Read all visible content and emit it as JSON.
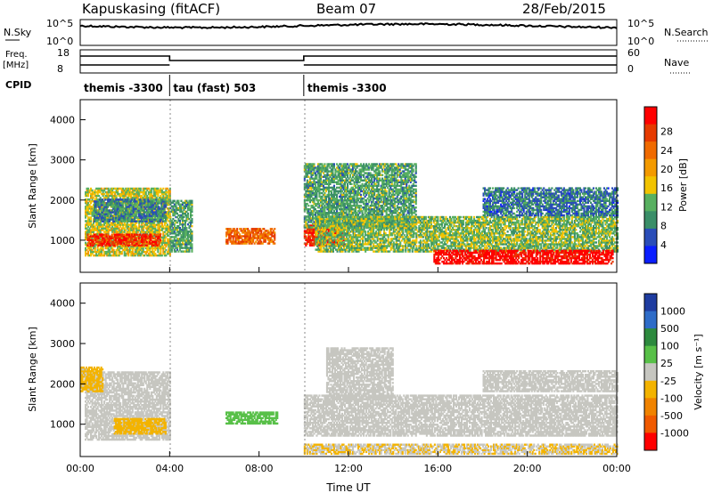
{
  "header": {
    "station": "Kapuskasing (fitACF)",
    "beam": "Beam 07",
    "date": "28/Feb/2015"
  },
  "aux_panels": {
    "nsky_label": "N.Sky",
    "nsky_ticks": [
      "10^5",
      "10^0"
    ],
    "nsearch_label": "N.Search",
    "nsearch_ticks": [
      "10^5",
      "10^0"
    ],
    "freq_label_1": "Freq.",
    "freq_label_2": "[MHz]",
    "freq_ticks": [
      "18",
      "8"
    ],
    "nave_label": "Nave",
    "nave_ticks": [
      "60",
      "0"
    ],
    "cpid_label": "CPID",
    "cpid_segments": [
      {
        "name": "themis -3300",
        "start_hr": 0,
        "end_hr": 4
      },
      {
        "name": "tau (fast) 503",
        "start_hr": 4,
        "end_hr": 10
      },
      {
        "name": "themis -3300",
        "start_hr": 10,
        "end_hr": 24
      }
    ]
  },
  "colors": {
    "power_scale": [
      "#0a1eff",
      "#2a4db8",
      "#3a8e68",
      "#58b060",
      "#f2c300",
      "#f39a00",
      "#f06a00",
      "#e63a00",
      "#ff0000"
    ],
    "velocity_scale": [
      "#1e3ca0",
      "#2e6cc8",
      "#2d8a3e",
      "#58c048",
      "#c6c6c0",
      "#f3b300",
      "#f08300",
      "#f05a00",
      "#ff0000"
    ],
    "ground_scatter": "#c6c6c0"
  },
  "chart_data": [
    {
      "type": "heatmap",
      "title": "",
      "xlabel": "Time UT",
      "ylabel": "Slant Range [km]",
      "xlim": [
        0,
        24
      ],
      "ylim": [
        200,
        4500
      ],
      "x_ticks": [
        "00:00",
        "04:00",
        "08:00",
        "12:00",
        "16:00",
        "20:00",
        "00:00"
      ],
      "y_ticks": [
        "1000",
        "2000",
        "3000",
        "4000"
      ],
      "colorbar": {
        "label": "Power [dB]",
        "ticks": [
          "4",
          "8",
          "12",
          "16",
          "20",
          "24",
          "28"
        ],
        "range": [
          0,
          30
        ]
      },
      "regions": [
        {
          "t0": 0.2,
          "t1": 4.0,
          "r0": 600,
          "r1": 2300,
          "value": 14
        },
        {
          "t0": 0.3,
          "t1": 3.6,
          "r0": 850,
          "r1": 1150,
          "value": 26
        },
        {
          "t0": 0.6,
          "t1": 3.8,
          "r0": 1450,
          "r1": 2000,
          "value": 8
        },
        {
          "t0": 4.0,
          "t1": 5.0,
          "r0": 700,
          "r1": 2000,
          "value": 10
        },
        {
          "t0": 6.5,
          "t1": 8.7,
          "r0": 900,
          "r1": 1300,
          "value": 22
        },
        {
          "t0": 10.0,
          "t1": 11.8,
          "r0": 850,
          "r1": 1350,
          "value": 26
        },
        {
          "t0": 10.0,
          "t1": 15.0,
          "r0": 1300,
          "r1": 2900,
          "value": 10
        },
        {
          "t0": 10.5,
          "t1": 24.0,
          "r0": 700,
          "r1": 1600,
          "value": 12
        },
        {
          "t0": 15.8,
          "t1": 23.8,
          "r0": 400,
          "r1": 750,
          "value": 29
        },
        {
          "t0": 18.0,
          "t1": 24.0,
          "r0": 1600,
          "r1": 2300,
          "value": 7
        }
      ]
    },
    {
      "type": "heatmap",
      "title": "",
      "xlabel": "Time UT",
      "ylabel": "Slant Range [km]",
      "xlim": [
        0,
        24
      ],
      "ylim": [
        200,
        4500
      ],
      "x_ticks": [
        "00:00",
        "04:00",
        "08:00",
        "12:00",
        "16:00",
        "20:00",
        "00:00"
      ],
      "y_ticks": [
        "1000",
        "2000",
        "3000",
        "4000"
      ],
      "colorbar": {
        "label": "Velocity [m s⁻¹]",
        "ticks": [
          "1000",
          "500",
          "100",
          "25",
          "-25",
          "-100",
          "-500",
          "-1000"
        ],
        "range": [
          -1000,
          1000
        ]
      },
      "regions": [
        {
          "t0": 0.2,
          "t1": 4.0,
          "r0": 600,
          "r1": 2300,
          "value": 0
        },
        {
          "t0": 1.5,
          "t1": 3.8,
          "r0": 750,
          "r1": 1150,
          "value": -300
        },
        {
          "t0": 0.0,
          "t1": 1.0,
          "r0": 1800,
          "r1": 2400,
          "value": -150
        },
        {
          "t0": 6.5,
          "t1": 8.8,
          "r0": 1000,
          "r1": 1300,
          "value": 200
        },
        {
          "t0": 10.0,
          "t1": 24.0,
          "r0": 700,
          "r1": 1700,
          "value": 0
        },
        {
          "t0": 11.0,
          "t1": 14.0,
          "r0": 1600,
          "r1": 2900,
          "value": 0
        },
        {
          "t0": 18.0,
          "t1": 24.0,
          "r0": 1800,
          "r1": 2300,
          "value": -80
        },
        {
          "t0": 10.0,
          "t1": 24.0,
          "r0": 250,
          "r1": 500,
          "value": -120
        }
      ]
    }
  ]
}
